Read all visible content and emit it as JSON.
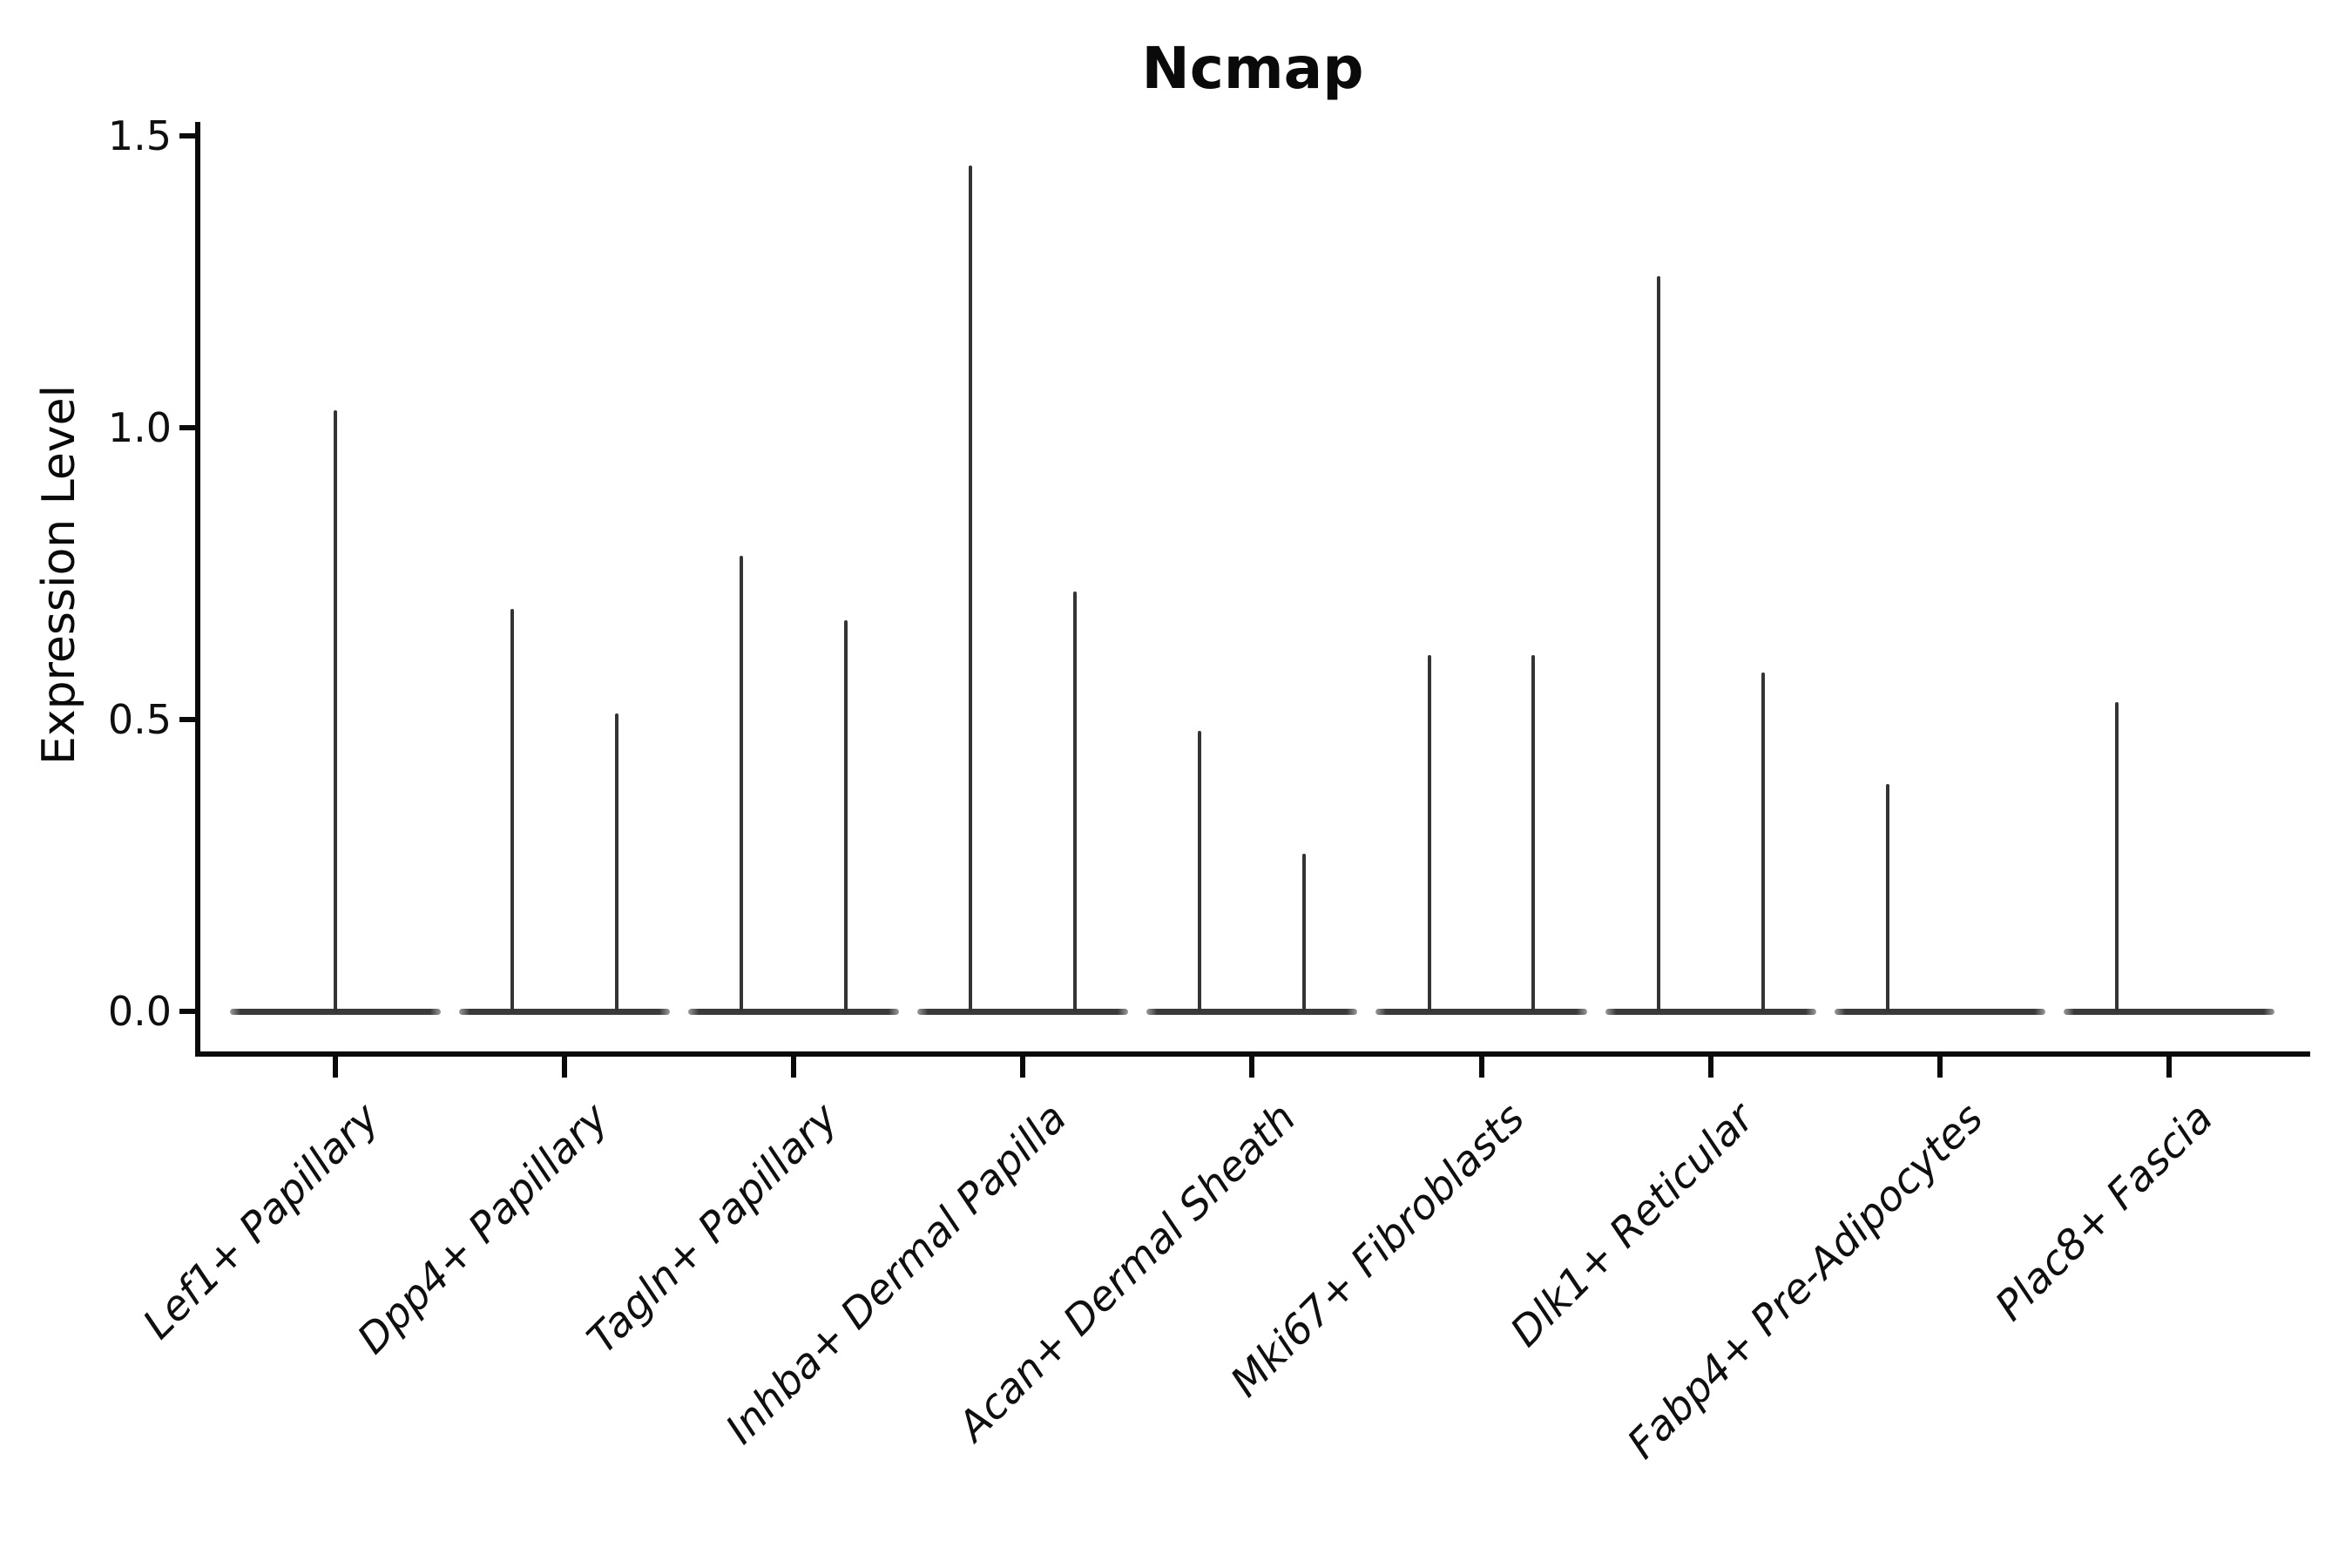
{
  "title": "Ncmap",
  "y_axis": {
    "label": "Expression Level",
    "ticks": [
      {
        "label": "1.5",
        "value": 1.5
      },
      {
        "label": "1.0",
        "value": 1.0
      },
      {
        "label": "0.5",
        "value": 0.5
      },
      {
        "label": "0.0",
        "value": 0.0
      }
    ]
  },
  "x_axis": {
    "categories": [
      "Lef1+ Papillary",
      "Dpp4+ Papillary",
      "Tagln+ Papillary",
      "Inhba+ Dermal Papilla",
      "Acan+ Dermal Sheath",
      "Mki67+ Fibroblasts",
      "Dlk1+ Reticular",
      "Fabp4+ Pre-Adipocytes",
      "Plac8+ Fascia"
    ]
  },
  "chart_data": {
    "type": "violin",
    "title": "Ncmap",
    "xlabel": "",
    "ylabel": "Expression Level",
    "ylim": [
      -0.07,
      1.52
    ],
    "y_ticks": [
      0.0,
      0.5,
      1.0,
      1.5
    ],
    "grid": false,
    "legend": "none",
    "note": "Needle-thin violins: each category shows a flat density base at expression 0 plus thin spikes reaching the maximum expression of rare expressing cells; spike offset is in category-width units relative to the category center.",
    "base_halfwidth": 0.46,
    "categories": [
      "Lef1+ Papillary",
      "Dpp4+ Papillary",
      "Tagln+ Papillary",
      "Inhba+ Dermal Papilla",
      "Acan+ Dermal Sheath",
      "Mki67+ Fibroblasts",
      "Dlk1+ Reticular",
      "Fabp4+ Pre-Adipocytes",
      "Plac8+ Fascia"
    ],
    "violins": [
      {
        "category": "Lef1+ Papillary",
        "spikes": [
          {
            "offset": 0.0,
            "value": 1.03
          }
        ]
      },
      {
        "category": "Dpp4+ Papillary",
        "spikes": [
          {
            "offset": -0.228,
            "value": 0.69
          },
          {
            "offset": 0.228,
            "value": 0.51
          }
        ]
      },
      {
        "category": "Tagln+ Papillary",
        "spikes": [
          {
            "offset": -0.228,
            "value": 0.78
          },
          {
            "offset": 0.228,
            "value": 0.67
          }
        ]
      },
      {
        "category": "Inhba+ Dermal Papilla",
        "spikes": [
          {
            "offset": -0.228,
            "value": 1.45
          },
          {
            "offset": 0.228,
            "value": 0.72
          }
        ]
      },
      {
        "category": "Acan+ Dermal Sheath",
        "spikes": [
          {
            "offset": -0.228,
            "value": 0.48
          },
          {
            "offset": 0.228,
            "value": 0.27
          }
        ]
      },
      {
        "category": "Mki67+ Fibroblasts",
        "spikes": [
          {
            "offset": -0.228,
            "value": 0.61
          },
          {
            "offset": 0.228,
            "value": 0.61
          }
        ]
      },
      {
        "category": "Dlk1+ Reticular",
        "spikes": [
          {
            "offset": -0.228,
            "value": 1.26
          },
          {
            "offset": 0.228,
            "value": 0.58
          }
        ]
      },
      {
        "category": "Fabp4+ Pre-Adipocytes",
        "spikes": [
          {
            "offset": -0.228,
            "value": 0.39
          }
        ]
      },
      {
        "category": "Plac8+ Fascia",
        "spikes": [
          {
            "offset": -0.228,
            "value": 0.53
          }
        ]
      }
    ],
    "colors": {
      "violin": "#3a3a3a",
      "axis": "#0a0a0a",
      "text": "#0f0f0f",
      "background": "#ffffff"
    }
  }
}
